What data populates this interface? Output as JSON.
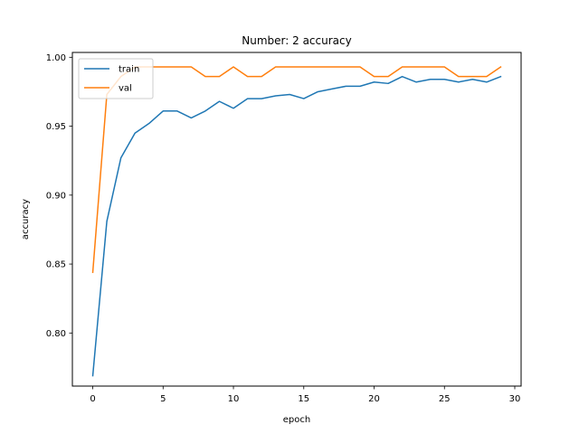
{
  "chart_data": {
    "type": "line",
    "title": "Number: 2 accuracy",
    "xlabel": "epoch",
    "ylabel": "accuracy",
    "xlim": [
      -1.45,
      30.45
    ],
    "ylim": [
      0.7615,
      1.0035
    ],
    "xticks": [
      0,
      5,
      10,
      15,
      20,
      25,
      30
    ],
    "xtick_labels": [
      "0",
      "5",
      "10",
      "15",
      "20",
      "25",
      "30"
    ],
    "yticks": [
      0.8,
      0.85,
      0.9,
      0.95,
      1.0
    ],
    "ytick_labels": [
      "0.80",
      "0.85",
      "0.90",
      "0.95",
      "1.00"
    ],
    "grid": false,
    "legend_position": "top-left",
    "x": [
      0,
      1,
      2,
      3,
      4,
      5,
      6,
      7,
      8,
      9,
      10,
      11,
      12,
      13,
      14,
      15,
      16,
      17,
      18,
      19,
      20,
      21,
      22,
      23,
      24,
      25,
      26,
      27,
      28,
      29
    ],
    "series": [
      {
        "name": "train",
        "color": "#1f77b4",
        "values": [
          0.769,
          0.881,
          0.927,
          0.945,
          0.952,
          0.961,
          0.961,
          0.956,
          0.961,
          0.968,
          0.963,
          0.97,
          0.97,
          0.972,
          0.973,
          0.97,
          0.975,
          0.977,
          0.979,
          0.979,
          0.982,
          0.981,
          0.986,
          0.982,
          0.984,
          0.984,
          0.982,
          0.984,
          0.982,
          0.986
        ]
      },
      {
        "name": "val",
        "color": "#ff7f0e",
        "values": [
          0.844,
          0.973,
          0.986,
          0.993,
          0.993,
          0.993,
          0.993,
          0.993,
          0.986,
          0.986,
          0.993,
          0.986,
          0.986,
          0.993,
          0.993,
          0.993,
          0.993,
          0.993,
          0.993,
          0.993,
          0.986,
          0.986,
          0.993,
          0.993,
          0.993,
          0.993,
          0.986,
          0.986,
          0.986,
          0.993
        ]
      }
    ]
  }
}
